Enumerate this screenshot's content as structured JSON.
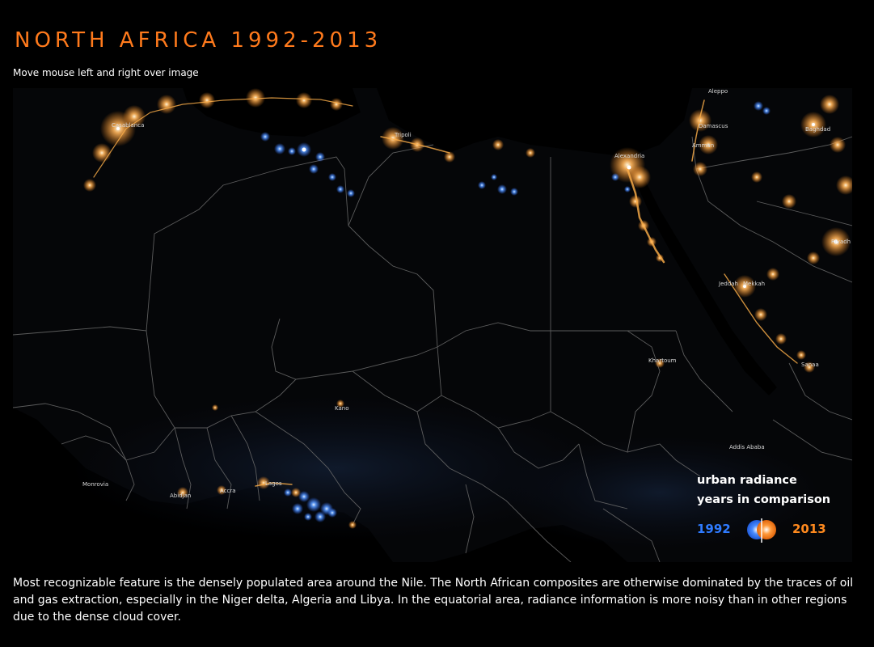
{
  "page": {
    "title": "NORTH AFRICA 1992-2013",
    "instruction": "Move mouse left and right over image",
    "description": "Most recognizable feature is the densely populated area around the Nile. The North African composites are otherwise dominated by the traces of oil and gas extraction, especially in the Niger delta, Algeria and Libya. In the equatorial area, radiance information is more noisy than in other regions due to the dense cloud cover."
  },
  "map": {
    "city_labels": {
      "casablanca": "Casablanca",
      "tripoli": "Tripoli",
      "alexandria": "Alexandria",
      "aleppo": "Aleppo",
      "damascus": "Damascus",
      "amman": "Amman",
      "baghdad": "Baghdad",
      "riyadh": "Riyadh",
      "jeddah": "Jeddah",
      "mekkah": "Mekkah",
      "khartoum": "Khartoum",
      "sanaa": "Sanaa",
      "addis_ababa": "Addis Ababa",
      "kano": "Kano",
      "monrovia": "Monrovia",
      "abidjan": "Abidjan",
      "accra": "Accra",
      "lagos": "Lagos"
    },
    "light_colors": {
      "year_1992": "#3f8cff",
      "year_2013": "#ff9a2e"
    }
  },
  "legend": {
    "title_line1": "urban radiance",
    "title_line2": "years in comparison",
    "year_left": "1992",
    "year_right": "2013",
    "color_left": "#2f7bff",
    "color_right": "#ff8a1e",
    "toggle_icon": "comparison-slider-icon"
  },
  "colors": {
    "title": "#ff7a1c",
    "background": "#000000",
    "borders": "#6b6b6b"
  }
}
